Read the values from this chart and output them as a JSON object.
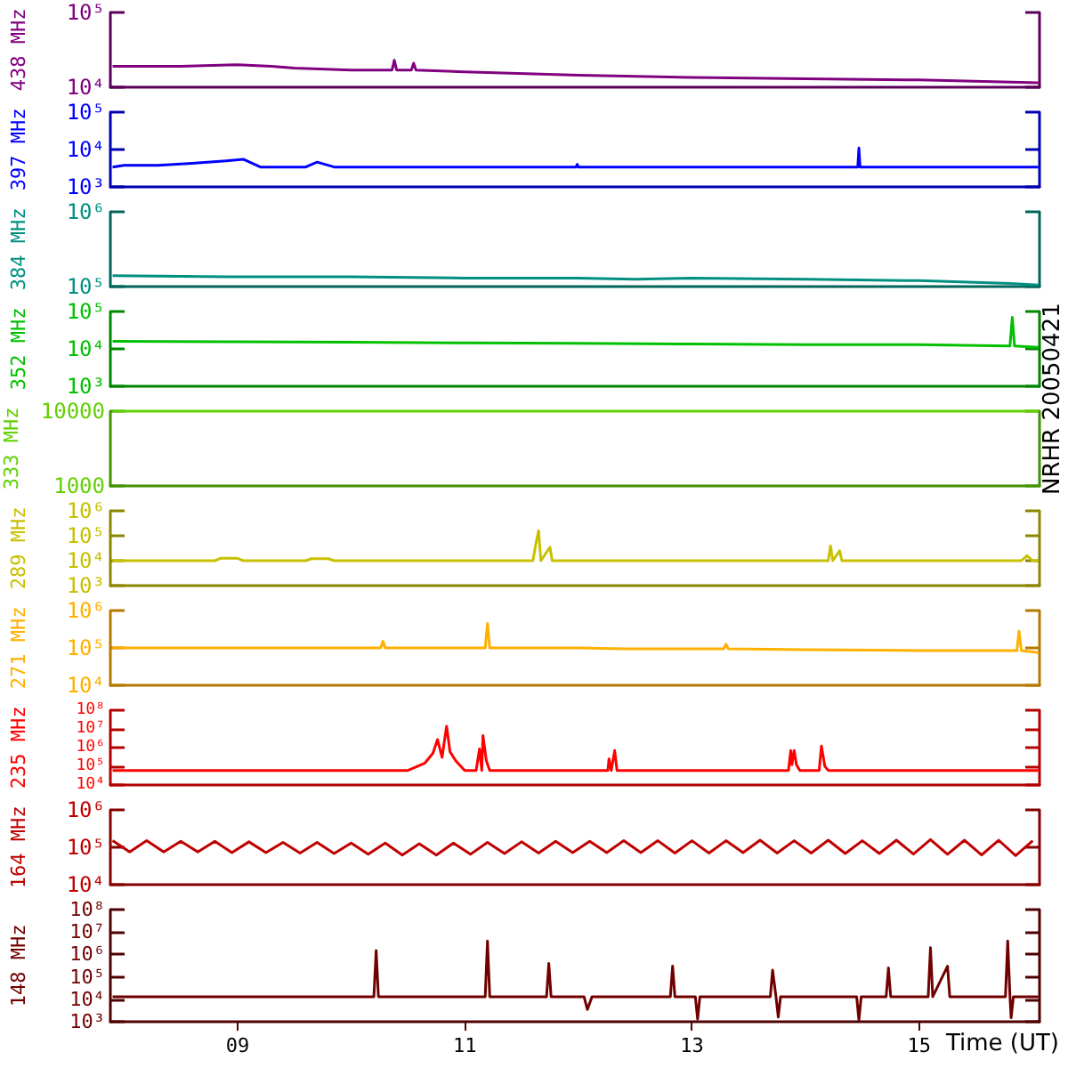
{
  "chart_data": [
    {
      "type": "line",
      "ylabel": "438 MHz",
      "log": true,
      "marker": "none",
      "tick_labels": "y",
      "xlim": [
        7.88,
        16.06
      ],
      "ylim": [
        10000,
        100000
      ],
      "yticks": [
        {
          "value": 10000,
          "label": "10⁴"
        },
        {
          "value": 100000,
          "label": "10⁵"
        }
      ],
      "series": [
        {
          "color": "#800080",
          "x": [
            7.9,
            8.5,
            9.0,
            9.3,
            9.5,
            10.0,
            10.36,
            10.38,
            10.4,
            10.53,
            10.55,
            10.57,
            11.0,
            12.0,
            13.0,
            14.0,
            15.0,
            16.05
          ],
          "values": [
            19000,
            19000,
            20000,
            19000,
            18000,
            17000,
            17000,
            23000,
            17000,
            17000,
            21000,
            17000,
            16000,
            14500,
            13500,
            13000,
            12500,
            11500
          ]
        }
      ]
    },
    {
      "type": "line",
      "ylabel": "397 MHz",
      "log": true,
      "marker": "none",
      "tick_labels": "y",
      "xlim": [
        7.88,
        16.06
      ],
      "ylim": [
        1000,
        100000
      ],
      "yticks": [
        {
          "value": 1000,
          "label": "10³"
        },
        {
          "value": 10000,
          "label": "10⁴"
        },
        {
          "value": 100000,
          "label": "10⁵"
        }
      ],
      "series": [
        {
          "color": "#0000ff",
          "x": [
            7.9,
            8.0,
            8.3,
            8.6,
            8.9,
            9.05,
            9.2,
            9.6,
            9.7,
            9.85,
            11.98,
            11.99,
            12.0,
            14.46,
            14.47,
            14.48,
            16.05
          ],
          "values": [
            3400,
            3800,
            3800,
            4300,
            5000,
            5500,
            3400,
            3400,
            4600,
            3400,
            3400,
            4000,
            3400,
            3400,
            11000,
            3400,
            3400
          ]
        }
      ]
    },
    {
      "type": "line",
      "ylabel": "384 MHz",
      "log": true,
      "marker": "none",
      "tick_labels": "y",
      "xlim": [
        7.88,
        16.06
      ],
      "ylim": [
        100000,
        1000000
      ],
      "yticks": [
        {
          "value": 100000,
          "label": "10⁵"
        },
        {
          "value": 1000000,
          "label": "10⁶"
        }
      ],
      "series": [
        {
          "color": "#009080",
          "x": [
            7.9,
            9.0,
            10.0,
            11.0,
            12.0,
            12.5,
            13.0,
            14.0,
            15.0,
            15.8,
            16.05
          ],
          "values": [
            140000,
            135000,
            135000,
            130000,
            130000,
            125000,
            130000,
            125000,
            120000,
            110000,
            105000
          ]
        }
      ]
    },
    {
      "type": "line",
      "ylabel": "352 MHz",
      "log": true,
      "marker": "none",
      "tick_labels": "y",
      "xlim": [
        7.88,
        16.06
      ],
      "ylim": [
        1000,
        100000
      ],
      "yticks": [
        {
          "value": 1000,
          "label": "10³"
        },
        {
          "value": 10000,
          "label": "10⁴"
        },
        {
          "value": 100000,
          "label": "10⁵"
        }
      ],
      "series": [
        {
          "color": "#00c000",
          "x": [
            7.9,
            9.0,
            10.0,
            11.0,
            12.0,
            13.0,
            14.0,
            15.0,
            15.8,
            15.82,
            15.84,
            16.05
          ],
          "values": [
            16000,
            15500,
            15000,
            14500,
            14000,
            13500,
            13000,
            13000,
            12000,
            70000,
            12000,
            11000
          ]
        }
      ]
    },
    {
      "type": "line",
      "ylabel": "333 MHz",
      "log": true,
      "marker": "none",
      "tick_labels": "y",
      "xlim": [
        7.88,
        16.06
      ],
      "ylim": [
        1000,
        10000
      ],
      "yticks": [
        1000,
        10000
      ],
      "annotations": [
        "NRHR 20050421"
      ],
      "series": [
        {
          "color": "#60d000",
          "x": [
            7.9,
            16.05
          ],
          "values": [
            10000,
            10000
          ]
        }
      ]
    },
    {
      "type": "line",
      "ylabel": "289 MHz",
      "log": true,
      "marker": "none",
      "tick_labels": "y",
      "xlim": [
        7.88,
        16.06
      ],
      "ylim": [
        1000,
        1000000
      ],
      "yticks": [
        {
          "value": 1000,
          "label": "10³"
        },
        {
          "value": 10000,
          "label": "10⁴"
        },
        {
          "value": 100000,
          "label": "10⁵"
        },
        {
          "value": 1000000,
          "label": "10⁶"
        }
      ],
      "series": [
        {
          "color": "#c8c000",
          "x": [
            7.9,
            8.8,
            8.85,
            9.0,
            9.05,
            9.6,
            9.65,
            9.8,
            9.85,
            11.6,
            11.63,
            11.65,
            11.67,
            11.75,
            11.77,
            14.2,
            14.22,
            14.24,
            14.3,
            14.32,
            15.9,
            15.95,
            16.0,
            16.05
          ],
          "values": [
            10000,
            10000,
            12500,
            12500,
            10000,
            10000,
            12000,
            12000,
            10000,
            10000,
            60000,
            160000,
            10000,
            35000,
            10000,
            10000,
            40000,
            10000,
            25000,
            10000,
            10000,
            16000,
            10000,
            10000
          ]
        }
      ]
    },
    {
      "type": "line",
      "ylabel": "271 MHz",
      "log": true,
      "marker": "none",
      "tick_labels": "y",
      "xlim": [
        7.88,
        16.06
      ],
      "ylim": [
        10000,
        1000000
      ],
      "yticks": [
        {
          "value": 10000,
          "label": "10⁴"
        },
        {
          "value": 100000,
          "label": "10⁵"
        },
        {
          "value": 1000000,
          "label": "10⁶"
        }
      ],
      "series": [
        {
          "color": "#ffb000",
          "x": [
            7.9,
            9.0,
            10.26,
            10.28,
            10.3,
            11.18,
            11.2,
            11.22,
            12.0,
            12.4,
            13.28,
            13.3,
            13.32,
            14.0,
            15.0,
            15.86,
            15.88,
            15.9,
            16.05
          ],
          "values": [
            100000,
            100000,
            100000,
            150000,
            100000,
            100000,
            450000,
            100000,
            100000,
            95000,
            95000,
            125000,
            95000,
            90000,
            85000,
            85000,
            280000,
            85000,
            75000
          ]
        }
      ]
    },
    {
      "type": "line",
      "ylabel": "235 MHz",
      "log": true,
      "marker": "none",
      "tick_labels": "y",
      "xlim": [
        7.88,
        16.06
      ],
      "ylim": [
        10000,
        100000000
      ],
      "yticks": [
        {
          "value": 10000,
          "label": "10⁴"
        },
        {
          "value": 100000,
          "label": "10⁵"
        },
        {
          "value": 1000000,
          "label": "10⁶"
        },
        {
          "value": 10000000,
          "label": "10⁷"
        },
        {
          "value": 100000000,
          "label": "10⁸"
        }
      ],
      "series": [
        {
          "color": "#ff0000",
          "x": [
            7.9,
            10.5,
            10.65,
            10.72,
            10.76,
            10.8,
            10.84,
            10.87,
            10.92,
            11.0,
            11.1,
            11.13,
            11.15,
            11.16,
            11.19,
            11.22,
            12.26,
            12.27,
            12.29,
            12.32,
            12.34,
            13.85,
            13.87,
            13.88,
            13.9,
            13.92,
            13.95,
            14.12,
            14.14,
            14.17,
            14.2,
            16.05
          ],
          "values": [
            60000,
            60000,
            150000,
            500000,
            2700000,
            300000,
            14000000,
            600000,
            200000,
            60000,
            60000,
            850000,
            60000,
            4400000,
            200000,
            60000,
            60000,
            250000,
            60000,
            700000,
            60000,
            60000,
            700000,
            120000,
            700000,
            120000,
            60000,
            60000,
            1200000,
            100000,
            60000,
            60000
          ]
        }
      ]
    },
    {
      "type": "line",
      "ylabel": "164 MHz",
      "log": true,
      "marker": "none",
      "tick_labels": "y",
      "xlim": [
        7.88,
        16.06
      ],
      "ylim": [
        10000,
        1000000
      ],
      "yticks": [
        {
          "value": 10000,
          "label": "10⁴"
        },
        {
          "value": 100000,
          "label": "10⁵"
        },
        {
          "value": 1000000,
          "label": "10⁶"
        }
      ],
      "series": [
        {
          "color": "#c00000",
          "x": [
            7.9,
            8.05,
            8.2,
            8.35,
            8.5,
            8.65,
            8.8,
            8.95,
            9.1,
            9.25,
            9.4,
            9.55,
            9.7,
            9.85,
            10.0,
            10.15,
            10.3,
            10.45,
            10.6,
            10.75,
            10.9,
            11.05,
            11.2,
            11.35,
            11.5,
            11.65,
            11.8,
            11.95,
            12.1,
            12.25,
            12.4,
            12.55,
            12.7,
            12.85,
            13.0,
            13.15,
            13.3,
            13.45,
            13.6,
            13.75,
            13.9,
            14.05,
            14.2,
            14.35,
            14.5,
            14.65,
            14.8,
            14.95,
            15.1,
            15.25,
            15.4,
            15.55,
            15.7,
            15.85,
            16.0
          ],
          "values": [
            150000,
            75000,
            150000,
            75000,
            145000,
            75000,
            145000,
            72000,
            140000,
            72000,
            135000,
            70000,
            135000,
            68000,
            130000,
            65000,
            130000,
            62000,
            125000,
            62000,
            130000,
            65000,
            135000,
            68000,
            140000,
            70000,
            145000,
            72000,
            145000,
            72000,
            150000,
            72000,
            150000,
            70000,
            150000,
            70000,
            150000,
            72000,
            155000,
            70000,
            150000,
            70000,
            155000,
            68000,
            150000,
            68000,
            155000,
            66000,
            160000,
            65000,
            155000,
            62000,
            155000,
            60000,
            150000
          ]
        }
      ]
    },
    {
      "type": "line",
      "ylabel": "148 MHz",
      "xlabel": "Time (UT)",
      "log": true,
      "marker": "none",
      "xlim": [
        7.88,
        16.06
      ],
      "xticks": [
        {
          "value": 9,
          "label": "09"
        },
        {
          "value": 11,
          "label": "11"
        },
        {
          "value": 13,
          "label": "13"
        },
        {
          "value": 15,
          "label": "15"
        }
      ],
      "ylim": [
        1000,
        100000000
      ],
      "yticks": [
        {
          "value": 1000,
          "label": "10³"
        },
        {
          "value": 10000,
          "label": "10⁴"
        },
        {
          "value": 100000,
          "label": "10⁵"
        },
        {
          "value": 1000000,
          "label": "10⁶"
        },
        {
          "value": 10000000,
          "label": "10⁷"
        },
        {
          "value": 100000000,
          "label": "10⁸"
        }
      ],
      "series": [
        {
          "color": "#700000",
          "x": [
            7.9,
            10.2,
            10.22,
            10.24,
            11.18,
            11.2,
            11.22,
            11.72,
            11.74,
            11.76,
            12.05,
            12.08,
            12.12,
            12.81,
            12.83,
            12.85,
            13.03,
            13.05,
            13.07,
            13.69,
            13.71,
            13.74,
            13.76,
            13.78,
            14.45,
            14.47,
            14.49,
            14.71,
            14.73,
            14.75,
            15.08,
            15.1,
            15.12,
            15.25,
            15.27,
            15.76,
            15.78,
            15.8,
            15.81,
            15.83,
            16.05
          ],
          "values": [
            13000,
            13000,
            1500000,
            13000,
            13000,
            4000000,
            13000,
            13000,
            400000,
            13000,
            13000,
            3500,
            13000,
            13000,
            300000,
            13000,
            13000,
            1300,
            13000,
            13000,
            200000,
            13000,
            1600,
            13000,
            13000,
            1200,
            13000,
            13000,
            250000,
            13000,
            13000,
            2000000,
            13000,
            300000,
            13000,
            13000,
            4000000,
            13000,
            1500,
            13000,
            13000
          ]
        }
      ]
    }
  ]
}
